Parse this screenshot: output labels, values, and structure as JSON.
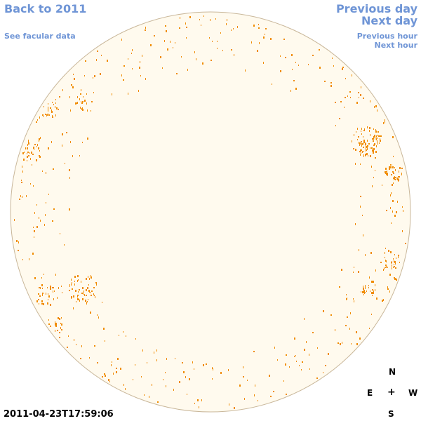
{
  "nav": {
    "back_label": "Back to 2011",
    "facular_label": "See facular data",
    "prev_day_label": "Previous day",
    "next_day_label": "Next day",
    "prev_hour_label": "Previous hour",
    "next_hour_label": "Next hour"
  },
  "compass": {
    "north": "N",
    "east": "E",
    "center": "+",
    "west": "W",
    "south": "S"
  },
  "timestamp": "2011-04-23T17:59:06",
  "colors": {
    "disk_fill": "#fffaee",
    "disk_stroke": "#c9b79a",
    "facula": "#f08c00",
    "link": "#6f95d6"
  }
}
